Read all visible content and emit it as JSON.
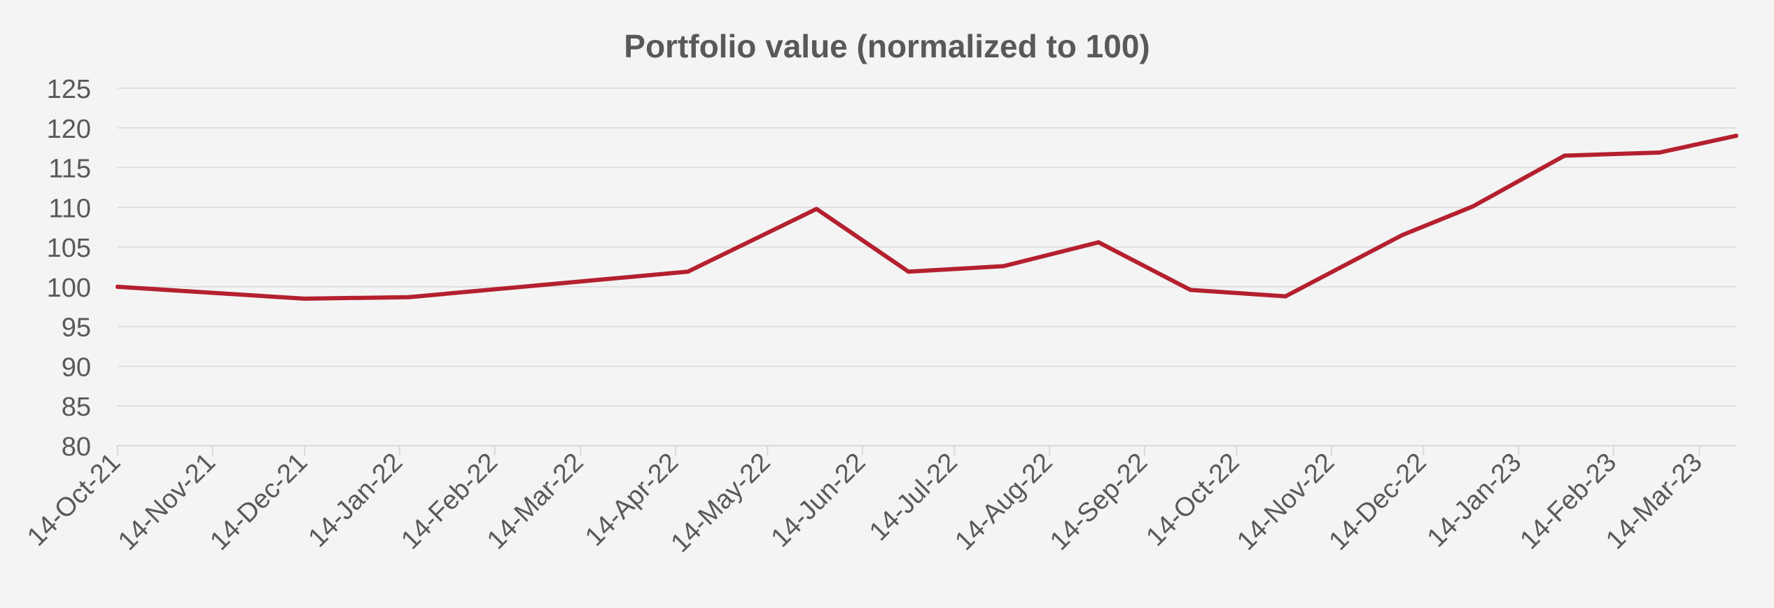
{
  "chart_data": {
    "type": "line",
    "title": "Portfolio value (normalized to 100)",
    "xlabel": "",
    "ylabel": "",
    "ylim": [
      80,
      125
    ],
    "y_ticks": [
      80,
      85,
      90,
      95,
      100,
      105,
      110,
      115,
      120,
      125
    ],
    "x_range_days": [
      0,
      528
    ],
    "x_ticks": [
      {
        "label": "14-Oct-21",
        "day": 0
      },
      {
        "label": "14-Nov-21",
        "day": 31
      },
      {
        "label": "14-Dec-21",
        "day": 61
      },
      {
        "label": "14-Jan-22",
        "day": 92
      },
      {
        "label": "14-Feb-22",
        "day": 123
      },
      {
        "label": "14-Mar-22",
        "day": 151
      },
      {
        "label": "14-Apr-22",
        "day": 182
      },
      {
        "label": "14-May-22",
        "day": 212
      },
      {
        "label": "14-Jun-22",
        "day": 243
      },
      {
        "label": "14-Jul-22",
        "day": 273
      },
      {
        "label": "14-Aug-22",
        "day": 304
      },
      {
        "label": "14-Sep-22",
        "day": 335
      },
      {
        "label": "14-Oct-22",
        "day": 365
      },
      {
        "label": "14-Nov-22",
        "day": 396
      },
      {
        "label": "14-Dec-22",
        "day": 426
      },
      {
        "label": "14-Jan-23",
        "day": 457
      },
      {
        "label": "14-Feb-23",
        "day": 488
      },
      {
        "label": "14-Mar-23",
        "day": 516
      }
    ],
    "series": [
      {
        "name": "Portfolio value",
        "color": "#b5202e",
        "points": [
          {
            "day": 0,
            "value": 100.0
          },
          {
            "day": 61,
            "value": 98.5
          },
          {
            "day": 95,
            "value": 98.7
          },
          {
            "day": 186,
            "value": 101.9
          },
          {
            "day": 228,
            "value": 109.8
          },
          {
            "day": 258,
            "value": 101.9
          },
          {
            "day": 289,
            "value": 102.6
          },
          {
            "day": 320,
            "value": 105.6
          },
          {
            "day": 350,
            "value": 99.6
          },
          {
            "day": 381,
            "value": 98.8
          },
          {
            "day": 419,
            "value": 106.5
          },
          {
            "day": 442,
            "value": 110.1
          },
          {
            "day": 472,
            "value": 116.5
          },
          {
            "day": 503,
            "value": 116.9
          },
          {
            "day": 528,
            "value": 119.0
          }
        ]
      }
    ]
  }
}
